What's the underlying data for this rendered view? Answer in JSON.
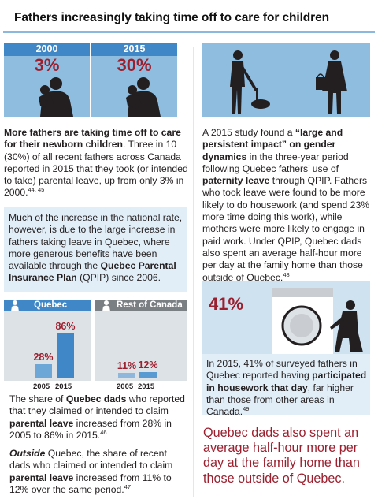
{
  "header": {
    "title": "Fathers increasingly taking time off to care for children"
  },
  "tiles": [
    {
      "year": "2000",
      "percent": "3%"
    },
    {
      "year": "2015",
      "percent": "30%"
    }
  ],
  "intro": {
    "lead_bold": "More fathers are taking time off to care for their newborn children",
    "body": ". Three in 10 (30%) of all recent fathers across Canada reported in 2015 that they took (or intended to take) parental leave, up from only 3% in 2000.",
    "footnote": "44, 45"
  },
  "bluebox": {
    "text_1": "Much of the increase in the national rate, however, is due to the large increase in fathers taking leave in Quebec, where more generous benefits have been available through the ",
    "bold": "Quebec Parental Insurance Plan",
    "text_2": " (QPIP) since 2006."
  },
  "chart_data": [
    {
      "type": "bar",
      "title": "Quebec",
      "categories": [
        "2005",
        "2015"
      ],
      "values": [
        28,
        86
      ],
      "labels": [
        "28%",
        "86%"
      ],
      "ylim": [
        0,
        100
      ]
    },
    {
      "type": "bar",
      "title": "Rest of Canada",
      "categories": [
        "2005",
        "2015"
      ],
      "values": [
        11,
        12
      ],
      "labels": [
        "11%",
        "12%"
      ],
      "ylim": [
        0,
        100
      ]
    }
  ],
  "quebec_para": {
    "t1": "The share of ",
    "b1": "Quebec dads",
    "t2": " who reported that they claimed or intended to claim ",
    "b2": "parental leave",
    "t3": " increased from 28% in 2005 to 86% in 2015.",
    "footnote": "46"
  },
  "outside_para": {
    "b1": "Outside",
    "t1": " Quebec, the share of recent dads who claimed or intended to claim ",
    "b2": "parental leave",
    "t2": " increased from 11% to 12% over the same period.",
    "footnote": "47"
  },
  "study_para": {
    "t1": "A 2015 study found a ",
    "b1": "“large and persistent impact” on gender dynamics",
    "t2": " in the three-year period following Quebec fathers’ use of ",
    "b2": "paternity leave",
    "t3": " through QPIP. Fathers who took leave were found to be more likely to do housework (and spend 23% more time doing this work), while mothers were more likely to engage in paid work. Under QPIP, Quebec dads also spent an average half-hour more per day at the family home than those outside of Quebec.",
    "footnote": "48"
  },
  "washer": {
    "percent": "41%"
  },
  "survey_box": {
    "t1": "In 2015, 41% of surveyed fathers in Quebec reported having ",
    "b1": "participated in housework that day",
    "t2": ", far higher than those from other areas in Canada.",
    "footnote": "49"
  },
  "callout": {
    "text": "Quebec dads also spent an average half-hour more per day at the family home than those outside of Quebec."
  },
  "colors": {
    "accent_blue": "#3f87c6",
    "light_blue": "#8fbde0",
    "red": "#9c1f2e",
    "dark_bar": "#2f7fc0"
  }
}
